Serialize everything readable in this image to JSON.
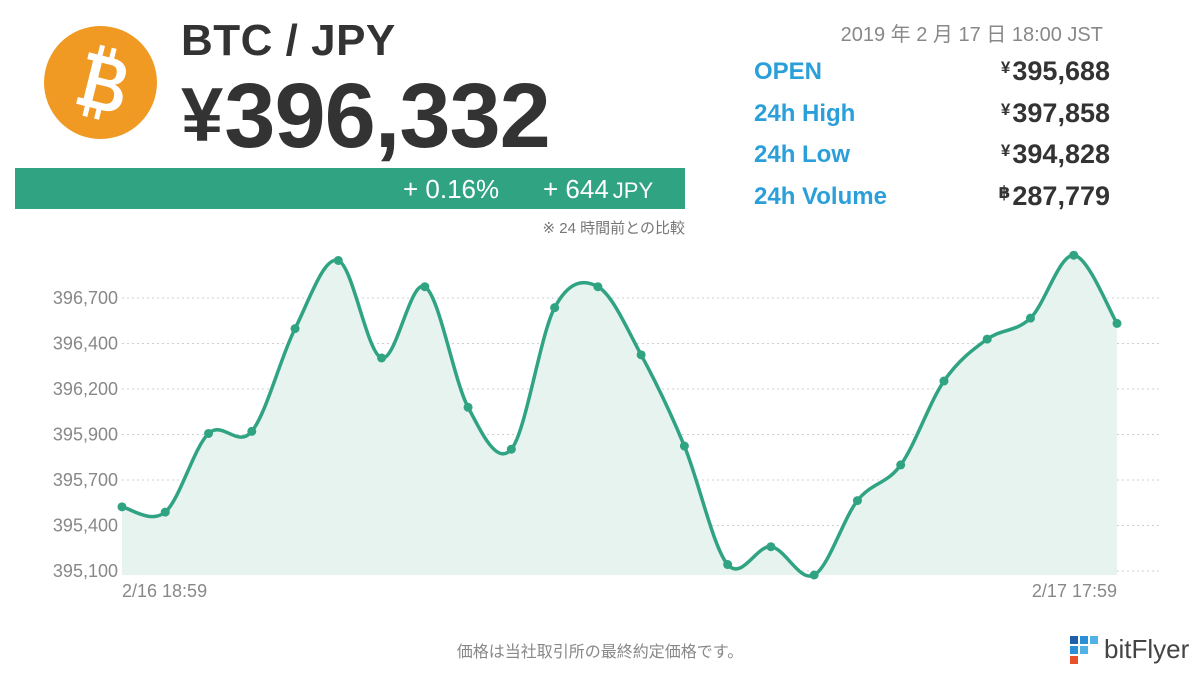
{
  "header": {
    "pair": "BTC / JPY",
    "price_symbol": "¥",
    "price_value": "396,332"
  },
  "change": {
    "percent": "+ 0.16%",
    "amount": "+ 644",
    "unit": "JPY",
    "note": "※ 24 時間前との比較"
  },
  "timestamp": "2019 年 2 月 17 日 18:00 JST",
  "stats": [
    {
      "label": "OPEN",
      "currency": "¥",
      "value": "395,688"
    },
    {
      "label": "24h High",
      "currency": "¥",
      "value": "397,858"
    },
    {
      "label": "24h Low",
      "currency": "¥",
      "value": "394,828"
    },
    {
      "label": "24h Volume",
      "currency": "฿",
      "value": "287,779"
    }
  ],
  "footer_note": "価格は当社取引所の最終約定価格です。",
  "brand": {
    "name": "bitFlyer"
  },
  "colors": {
    "accent_green": "#30a382",
    "label_blue": "#2b9fd9",
    "logo_orange": "#f09a24"
  },
  "icons": {
    "logo": "bitcoin-logo-icon",
    "brand": "bitflyer-logo-icon"
  },
  "chart_data": {
    "type": "area",
    "title": "",
    "xlabel": "",
    "ylabel": "",
    "x_start_label": "2/16 18:59",
    "x_end_label": "2/17 17:59",
    "y_tick_labels": [
      "396,700",
      "396,400",
      "396,200",
      "395,900",
      "395,700",
      "395,400",
      "395,100"
    ],
    "ylim": [
      394850,
      397950
    ],
    "grid": true,
    "series": [
      {
        "values": [
          395500,
          395450,
          396200,
          396220,
          397200,
          397850,
          396920,
          397600,
          396450,
          396050,
          397400,
          397600,
          396950,
          396080,
          394950,
          395120,
          394850,
          395560,
          395900,
          396700,
          397100,
          397300,
          397900,
          397250
        ]
      }
    ]
  }
}
